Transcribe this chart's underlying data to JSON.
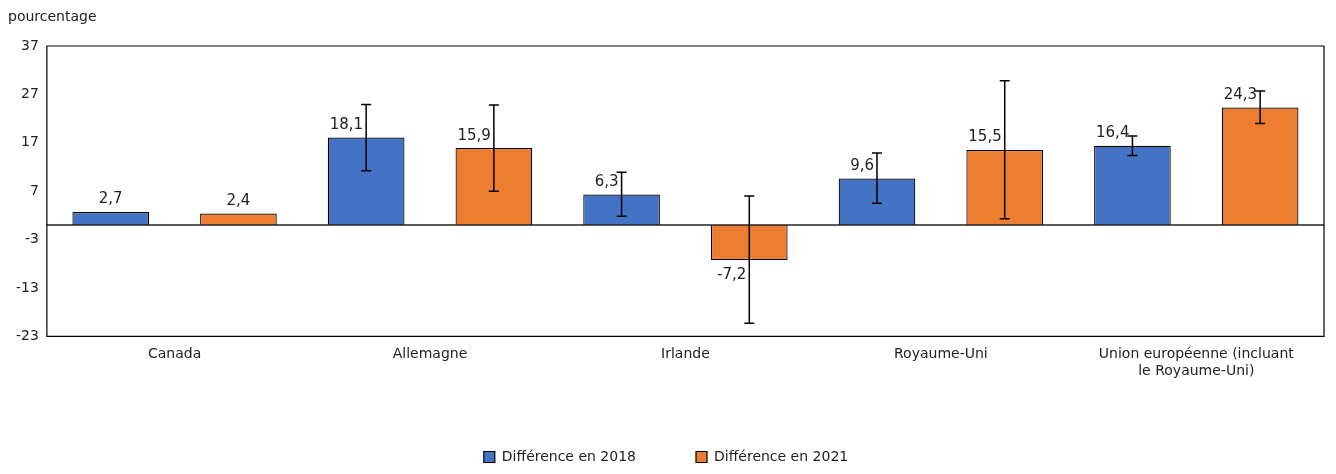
{
  "chart_data": {
    "type": "bar",
    "ylabel": "pourcentage",
    "categories": [
      "Canada",
      "Allemagne",
      "Irlande",
      "Royaume-Uni",
      "Union européenne (incluant le Royaume-Uni)"
    ],
    "series": [
      {
        "name": "Différence en 2018",
        "color": "#4472c4",
        "values": [
          2.7,
          18.1,
          6.3,
          9.6,
          16.4
        ],
        "value_labels": [
          "2,7",
          "18,1",
          "6,3",
          "9,6",
          "16,4"
        ],
        "errors": [
          null,
          [
            11.2,
            24.9
          ],
          [
            1.8,
            10.9
          ],
          [
            4.5,
            14.9
          ],
          [
            14.4,
            18.4
          ]
        ]
      },
      {
        "name": "Différence en 2021",
        "color": "#ed7d31",
        "values": [
          2.4,
          15.9,
          -7.2,
          15.5,
          24.3
        ],
        "value_labels": [
          "2,4",
          "15,9",
          "-7,2",
          "15,5",
          "24,3"
        ],
        "errors": [
          null,
          [
            7.0,
            24.8
          ],
          [
            -20.3,
            6.0
          ],
          [
            1.3,
            29.8
          ],
          [
            21.0,
            27.7
          ]
        ]
      }
    ],
    "ylim": [
      -23,
      37
    ],
    "yticks": [
      -23,
      -13,
      -3,
      7,
      17,
      27,
      37
    ],
    "grid": false,
    "legend": "bottom"
  }
}
